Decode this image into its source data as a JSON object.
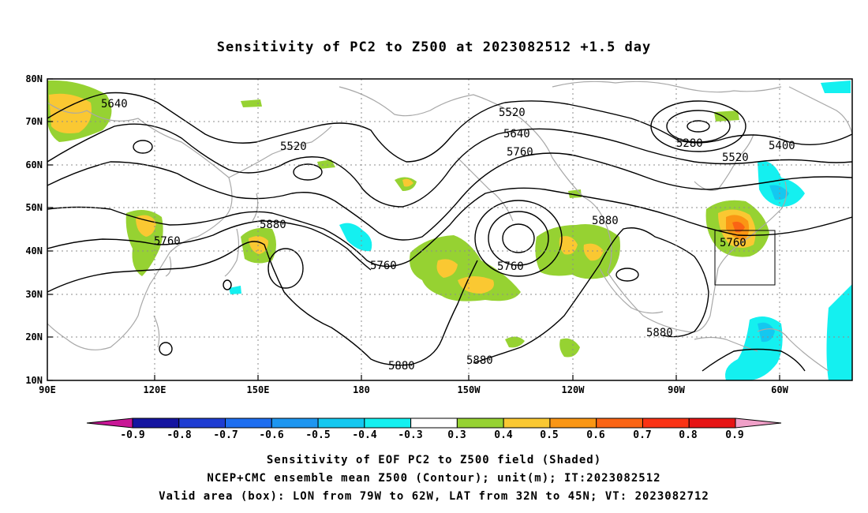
{
  "title": "Sensitivity of PC2 to Z500 at 2023082512 +1.5 day",
  "lat_labels": [
    "80N",
    "70N",
    "60N",
    "50N",
    "40N",
    "30N",
    "20N",
    "10N"
  ],
  "lon_labels": [
    "90E",
    "120E",
    "150E",
    "180",
    "150W",
    "120W",
    "90W",
    "60W"
  ],
  "contour_labels": [
    "5640",
    "5520",
    "5520",
    "5640",
    "5760",
    "5280",
    "5400",
    "5520",
    "5880",
    "5760",
    "5760",
    "5760",
    "5880",
    "5760",
    "5880",
    "5880",
    "5880"
  ],
  "colorbar": {
    "labels": [
      "-0.9",
      "-0.8",
      "-0.7",
      "-0.6",
      "-0.5",
      "-0.4",
      "-0.3",
      "0.3",
      "0.4",
      "0.5",
      "0.6",
      "0.7",
      "0.8",
      "0.9"
    ],
    "colors": [
      "#c81696",
      "#1414a0",
      "#1e3cd2",
      "#1e6ef0",
      "#1e96f0",
      "#14c8f0",
      "#14f0f0",
      "#ffffff",
      "#96d232",
      "#fac832",
      "#fa9614",
      "#fa6414",
      "#fa3214",
      "#e61414",
      "#f0a0c8"
    ]
  },
  "captions": [
    "Sensitivity of EOF PC2 to Z500 field (Shaded)",
    "NCEP+CMC ensemble mean Z500 (Contour); unit(m); IT:2023082512",
    "Valid area (box): LON from 79W to 62W, LAT from 32N to 45N; VT: 2023082712"
  ]
}
